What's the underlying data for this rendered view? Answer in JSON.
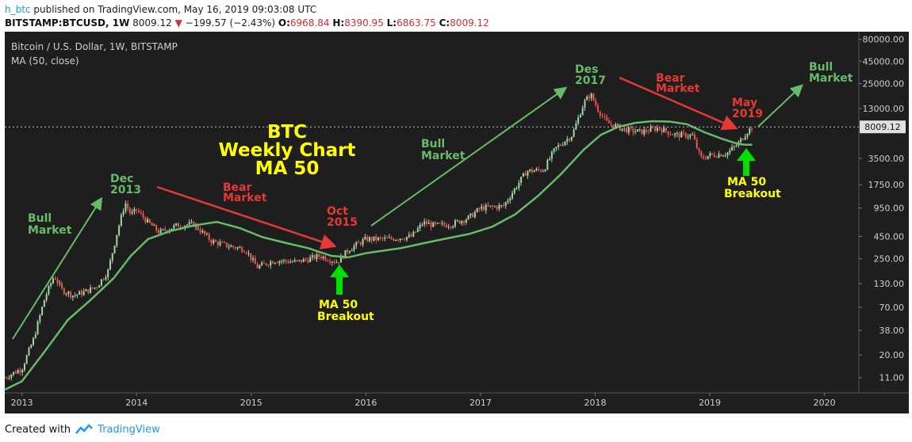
{
  "header": {
    "publisher": "h_btc",
    "published_text": "published on TradingView.com, May 16, 2019 09:03:08 UTC",
    "symbol": "BITSTAMP:BTCUSD, 1W",
    "last": "8009.12",
    "change": "−199.57 (−2.43%)",
    "open_label": "O:",
    "open": "6968.84",
    "high_label": "H:",
    "high": "8390.95",
    "low_label": "L:",
    "low": "6863.75",
    "close_label": "C:",
    "close": "8009.12"
  },
  "legend": {
    "title": "Bitcoin / U.S. Dollar, 1W, BITSTAMP",
    "indicator": "MA (50, close)"
  },
  "price_tag": "8009.12",
  "footer": {
    "created_with": "Created with",
    "brand": "TradingView"
  },
  "colors": {
    "background": "#1e1e1e",
    "candle_up": "#a5d6a7",
    "candle_down": "#ef5350",
    "ma_line": "#66bb6a",
    "bull_arrow": "#66bb6a",
    "bear_arrow": "#e53935",
    "breakout_arrow": "#00e000",
    "title_yellow": "#ffff00"
  },
  "annotations": [
    {
      "id": "bull-1",
      "lines": [
        "Bull",
        "Market"
      ],
      "color": "#66bb6a"
    },
    {
      "id": "dec-2013",
      "lines": [
        "Dec",
        "2013"
      ],
      "color": "#66bb6a"
    },
    {
      "id": "bear-1",
      "lines": [
        "Bear",
        "Market"
      ],
      "color": "#e53935"
    },
    {
      "id": "oct-2015",
      "lines": [
        "Oct",
        "2015"
      ],
      "color": "#e53935"
    },
    {
      "id": "breakout-1",
      "lines": [
        "MA 50",
        "Breakout"
      ],
      "color": "#ffff00"
    },
    {
      "id": "bull-2",
      "lines": [
        "Bull",
        "Market"
      ],
      "color": "#66bb6a"
    },
    {
      "id": "des-2017",
      "lines": [
        "Des",
        "2017"
      ],
      "color": "#66bb6a"
    },
    {
      "id": "bear-2",
      "lines": [
        "Bear",
        "Market"
      ],
      "color": "#e53935"
    },
    {
      "id": "may-2019",
      "lines": [
        "May",
        "2019"
      ],
      "color": "#e53935"
    },
    {
      "id": "breakout-2",
      "lines": [
        "MA 50",
        "Breakout"
      ],
      "color": "#ffff00"
    },
    {
      "id": "bull-3",
      "lines": [
        "Bull",
        "Market"
      ],
      "color": "#66bb6a"
    }
  ],
  "chart_title": [
    "BTC",
    "Weekly Chart",
    "MA 50"
  ],
  "chart_data": {
    "type": "line",
    "title": "Bitcoin / U.S. Dollar, 1W, BITSTAMP",
    "y_scale": "log",
    "ylim": [
      8,
      90000
    ],
    "y_ticks": [
      "80000.00",
      "45000.00",
      "25000.00",
      "13000.00",
      "3500.00",
      "1750.00",
      "950.00",
      "450.00",
      "250.00",
      "130.00",
      "70.00",
      "38.00",
      "20.00",
      "11.00"
    ],
    "x_ticks": [
      "2013",
      "2014",
      "2015",
      "2016",
      "2017",
      "2018",
      "2019",
      "2020"
    ],
    "xlim": [
      2012.85,
      2020.3
    ],
    "current_price": 8009.12,
    "grid": false,
    "series": [
      {
        "name": "BTCUSD",
        "x": [
          2012.85,
          2013.0,
          2013.1,
          2013.2,
          2013.28,
          2013.35,
          2013.45,
          2013.55,
          2013.65,
          2013.75,
          2013.83,
          2013.9,
          2013.95,
          2014.0,
          2014.1,
          2014.2,
          2014.35,
          2014.5,
          2014.65,
          2014.8,
          2014.95,
          2015.05,
          2015.2,
          2015.4,
          2015.6,
          2015.75,
          2015.85,
          2016.0,
          2016.2,
          2016.4,
          2016.5,
          2016.6,
          2016.75,
          2016.9,
          2017.0,
          2017.2,
          2017.4,
          2017.55,
          2017.65,
          2017.8,
          2017.9,
          2017.96,
          2018.02,
          2018.1,
          2018.25,
          2018.4,
          2018.55,
          2018.7,
          2018.85,
          2018.92,
          2019.0,
          2019.15,
          2019.25,
          2019.32,
          2019.37
        ],
        "values": [
          11,
          14,
          30,
          90,
          160,
          110,
          95,
          105,
          120,
          180,
          500,
          1100,
          800,
          900,
          650,
          500,
          600,
          620,
          400,
          350,
          320,
          200,
          240,
          230,
          270,
          230,
          320,
          420,
          420,
          450,
          650,
          600,
          620,
          740,
          950,
          1000,
          2500,
          2600,
          4500,
          6500,
          15000,
          19000,
          13000,
          9000,
          7500,
          7000,
          7800,
          6500,
          6400,
          3500,
          3800,
          4000,
          5200,
          6968,
          8009
        ]
      },
      {
        "name": "MA (50, close)",
        "x": [
          2012.85,
          2013.0,
          2013.2,
          2013.4,
          2013.6,
          2013.8,
          2013.95,
          2014.1,
          2014.3,
          2014.5,
          2014.7,
          2014.9,
          2015.1,
          2015.3,
          2015.5,
          2015.7,
          2015.85,
          2016.0,
          2016.3,
          2016.6,
          2016.9,
          2017.1,
          2017.3,
          2017.5,
          2017.7,
          2017.9,
          2018.05,
          2018.2,
          2018.35,
          2018.5,
          2018.65,
          2018.8,
          2018.95,
          2019.1,
          2019.25,
          2019.32,
          2019.37
        ],
        "values": [
          8,
          10,
          22,
          50,
          85,
          150,
          270,
          420,
          520,
          600,
          660,
          560,
          440,
          380,
          330,
          270,
          260,
          290,
          330,
          400,
          480,
          580,
          800,
          1300,
          2300,
          4400,
          6500,
          8000,
          8900,
          9300,
          9200,
          8600,
          7000,
          5900,
          5100,
          5000,
          5000
        ]
      }
    ]
  }
}
